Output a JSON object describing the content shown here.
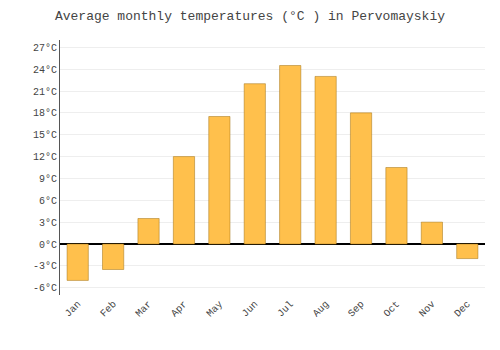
{
  "chart_data": {
    "type": "bar",
    "title": "Average monthly temperatures (°C ) in Pervomayskiy",
    "categories": [
      "Jan",
      "Feb",
      "Mar",
      "Apr",
      "May",
      "Jun",
      "Jul",
      "Aug",
      "Sep",
      "Oct",
      "Nov",
      "Dec"
    ],
    "values": [
      -5.0,
      -3.5,
      3.5,
      12.0,
      17.5,
      22.0,
      24.5,
      23.0,
      18.0,
      10.5,
      3.0,
      -2.0
    ],
    "color": "#FFC04C",
    "ylim": [
      -7,
      28
    ],
    "yticks": [
      {
        "value": -6,
        "label": "-6°C"
      },
      {
        "value": -3,
        "label": "-3°C"
      },
      {
        "value": 0,
        "label": "0°C"
      },
      {
        "value": 3,
        "label": "3°C"
      },
      {
        "value": 6,
        "label": "6°C"
      },
      {
        "value": 9,
        "label": "9°C"
      },
      {
        "value": 12,
        "label": "12°C"
      },
      {
        "value": 15,
        "label": "15°C"
      },
      {
        "value": 18,
        "label": "18°C"
      },
      {
        "value": 21,
        "label": "21°C"
      },
      {
        "value": 24,
        "label": "24°C"
      },
      {
        "value": 27,
        "label": "27°C"
      }
    ],
    "grid": true
  }
}
